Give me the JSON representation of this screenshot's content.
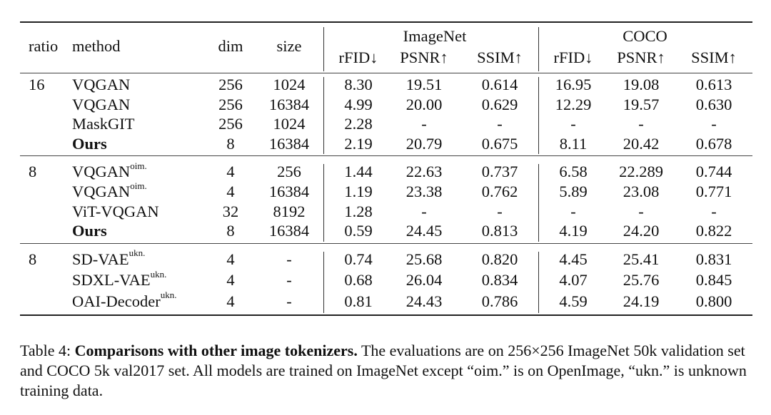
{
  "headers": {
    "ratio": "ratio",
    "method": "method",
    "dim": "dim",
    "size": "size",
    "group_imagenet": "ImageNet",
    "group_coco": "COCO",
    "rfid": "rFID↓",
    "psnr": "PSNR↑",
    "ssim": "SSIM↑"
  },
  "groups": [
    {
      "ratio": "16",
      "rows": [
        {
          "method": "VQGAN",
          "sup": "",
          "bold": false,
          "dim": "256",
          "size": "1024",
          "in_rfid": "8.30",
          "in_psnr": "19.51",
          "in_ssim": "0.614",
          "co_rfid": "16.95",
          "co_psnr": "19.08",
          "co_ssim": "0.613"
        },
        {
          "method": "VQGAN",
          "sup": "",
          "bold": false,
          "dim": "256",
          "size": "16384",
          "in_rfid": "4.99",
          "in_psnr": "20.00",
          "in_ssim": "0.629",
          "co_rfid": "12.29",
          "co_psnr": "19.57",
          "co_ssim": "0.630"
        },
        {
          "method": "MaskGIT",
          "sup": "",
          "bold": false,
          "dim": "256",
          "size": "1024",
          "in_rfid": "2.28",
          "in_psnr": "-",
          "in_ssim": "-",
          "co_rfid": "-",
          "co_psnr": "-",
          "co_ssim": "-"
        },
        {
          "method": "Ours",
          "sup": "",
          "bold": true,
          "dim": "8",
          "size": "16384",
          "in_rfid": "2.19",
          "in_psnr": "20.79",
          "in_ssim": "0.675",
          "co_rfid": "8.11",
          "co_psnr": "20.42",
          "co_ssim": "0.678"
        }
      ]
    },
    {
      "ratio": "8",
      "rows": [
        {
          "method": "VQGAN",
          "sup": "oim.",
          "bold": false,
          "dim": "4",
          "size": "256",
          "in_rfid": "1.44",
          "in_psnr": "22.63",
          "in_ssim": "0.737",
          "co_rfid": "6.58",
          "co_psnr": "22.289",
          "co_ssim": "0.744"
        },
        {
          "method": "VQGAN",
          "sup": "oim.",
          "bold": false,
          "dim": "4",
          "size": "16384",
          "in_rfid": "1.19",
          "in_psnr": "23.38",
          "in_ssim": "0.762",
          "co_rfid": "5.89",
          "co_psnr": "23.08",
          "co_ssim": "0.771"
        },
        {
          "method": "ViT-VQGAN",
          "sup": "",
          "bold": false,
          "dim": "32",
          "size": "8192",
          "in_rfid": "1.28",
          "in_psnr": "-",
          "in_ssim": "-",
          "co_rfid": "-",
          "co_psnr": "-",
          "co_ssim": "-"
        },
        {
          "method": "Ours",
          "sup": "",
          "bold": true,
          "dim": "8",
          "size": "16384",
          "in_rfid": "0.59",
          "in_psnr": "24.45",
          "in_ssim": "0.813",
          "co_rfid": "4.19",
          "co_psnr": "24.20",
          "co_ssim": "0.822"
        }
      ]
    },
    {
      "ratio": "8",
      "rows": [
        {
          "method": "SD-VAE",
          "sup": "ukn.",
          "bold": false,
          "dim": "4",
          "size": "-",
          "in_rfid": "0.74",
          "in_psnr": "25.68",
          "in_ssim": "0.820",
          "co_rfid": "4.45",
          "co_psnr": "25.41",
          "co_ssim": "0.831"
        },
        {
          "method": "SDXL-VAE",
          "sup": "ukn.",
          "bold": false,
          "dim": "4",
          "size": "-",
          "in_rfid": "0.68",
          "in_psnr": "26.04",
          "in_ssim": "0.834",
          "co_rfid": "4.07",
          "co_psnr": "25.76",
          "co_ssim": "0.845"
        },
        {
          "method": "OAI-Decoder",
          "sup": "ukn.",
          "bold": false,
          "dim": "4",
          "size": "-",
          "in_rfid": "0.81",
          "in_psnr": "24.43",
          "in_ssim": "0.786",
          "co_rfid": "4.59",
          "co_psnr": "24.19",
          "co_ssim": "0.800"
        }
      ]
    }
  ],
  "caption": {
    "label": "Table 4:",
    "bold": "Comparisons with other image tokenizers.",
    "text": "The evaluations are on 256×256 ImageNet 50k validation set and COCO 5k val2017 set. All models are trained on ImageNet except “oim.” is on OpenImage, “ukn.” is unknown training data."
  }
}
